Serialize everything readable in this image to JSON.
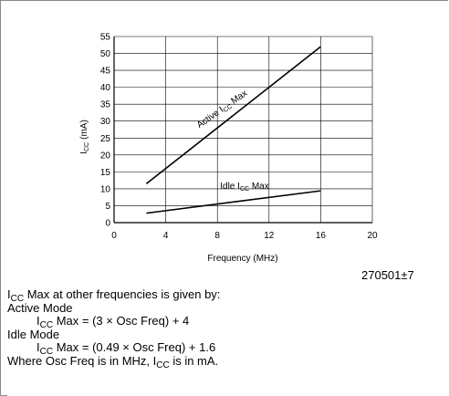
{
  "chart_data": {
    "type": "line",
    "xlabel": "Frequency (MHz)",
    "ylabel_main": "I",
    "ylabel_sub": "CC",
    "ylabel_unit": "(mA)",
    "xlim": [
      0,
      20
    ],
    "ylim": [
      0,
      55
    ],
    "xticks": [
      0,
      4,
      8,
      12,
      16,
      20
    ],
    "yticks": [
      0,
      5,
      10,
      15,
      20,
      25,
      30,
      35,
      40,
      45,
      50,
      55
    ],
    "grid": true,
    "series": [
      {
        "name_main": "Active I",
        "name_sub": "CC",
        "name_end": " Max",
        "points": [
          [
            2.5,
            11.5
          ],
          [
            16,
            52
          ]
        ]
      },
      {
        "name_main": "Idle I",
        "name_sub": "CC",
        "name_end": " Max",
        "points": [
          [
            2.5,
            2.8
          ],
          [
            16,
            9.4
          ]
        ]
      }
    ]
  },
  "figure_id": "270501±7",
  "notes": {
    "line1_pre": "I",
    "line1_sub": "CC",
    "line1_post": " Max at other frequencies is given by:",
    "active_title": "Active Mode",
    "active_pre": "I",
    "active_sub": "CC",
    "active_post": " Max = (3 × Osc Freq) + 4",
    "idle_title": "Idle Mode",
    "idle_pre": "I",
    "idle_sub": "CC",
    "idle_post": " Max = (0.49 × Osc Freq) + 1.6",
    "last_pre": "Where Osc Freq is in MHz, I",
    "last_sub": "CC",
    "last_post": " is in mA."
  }
}
